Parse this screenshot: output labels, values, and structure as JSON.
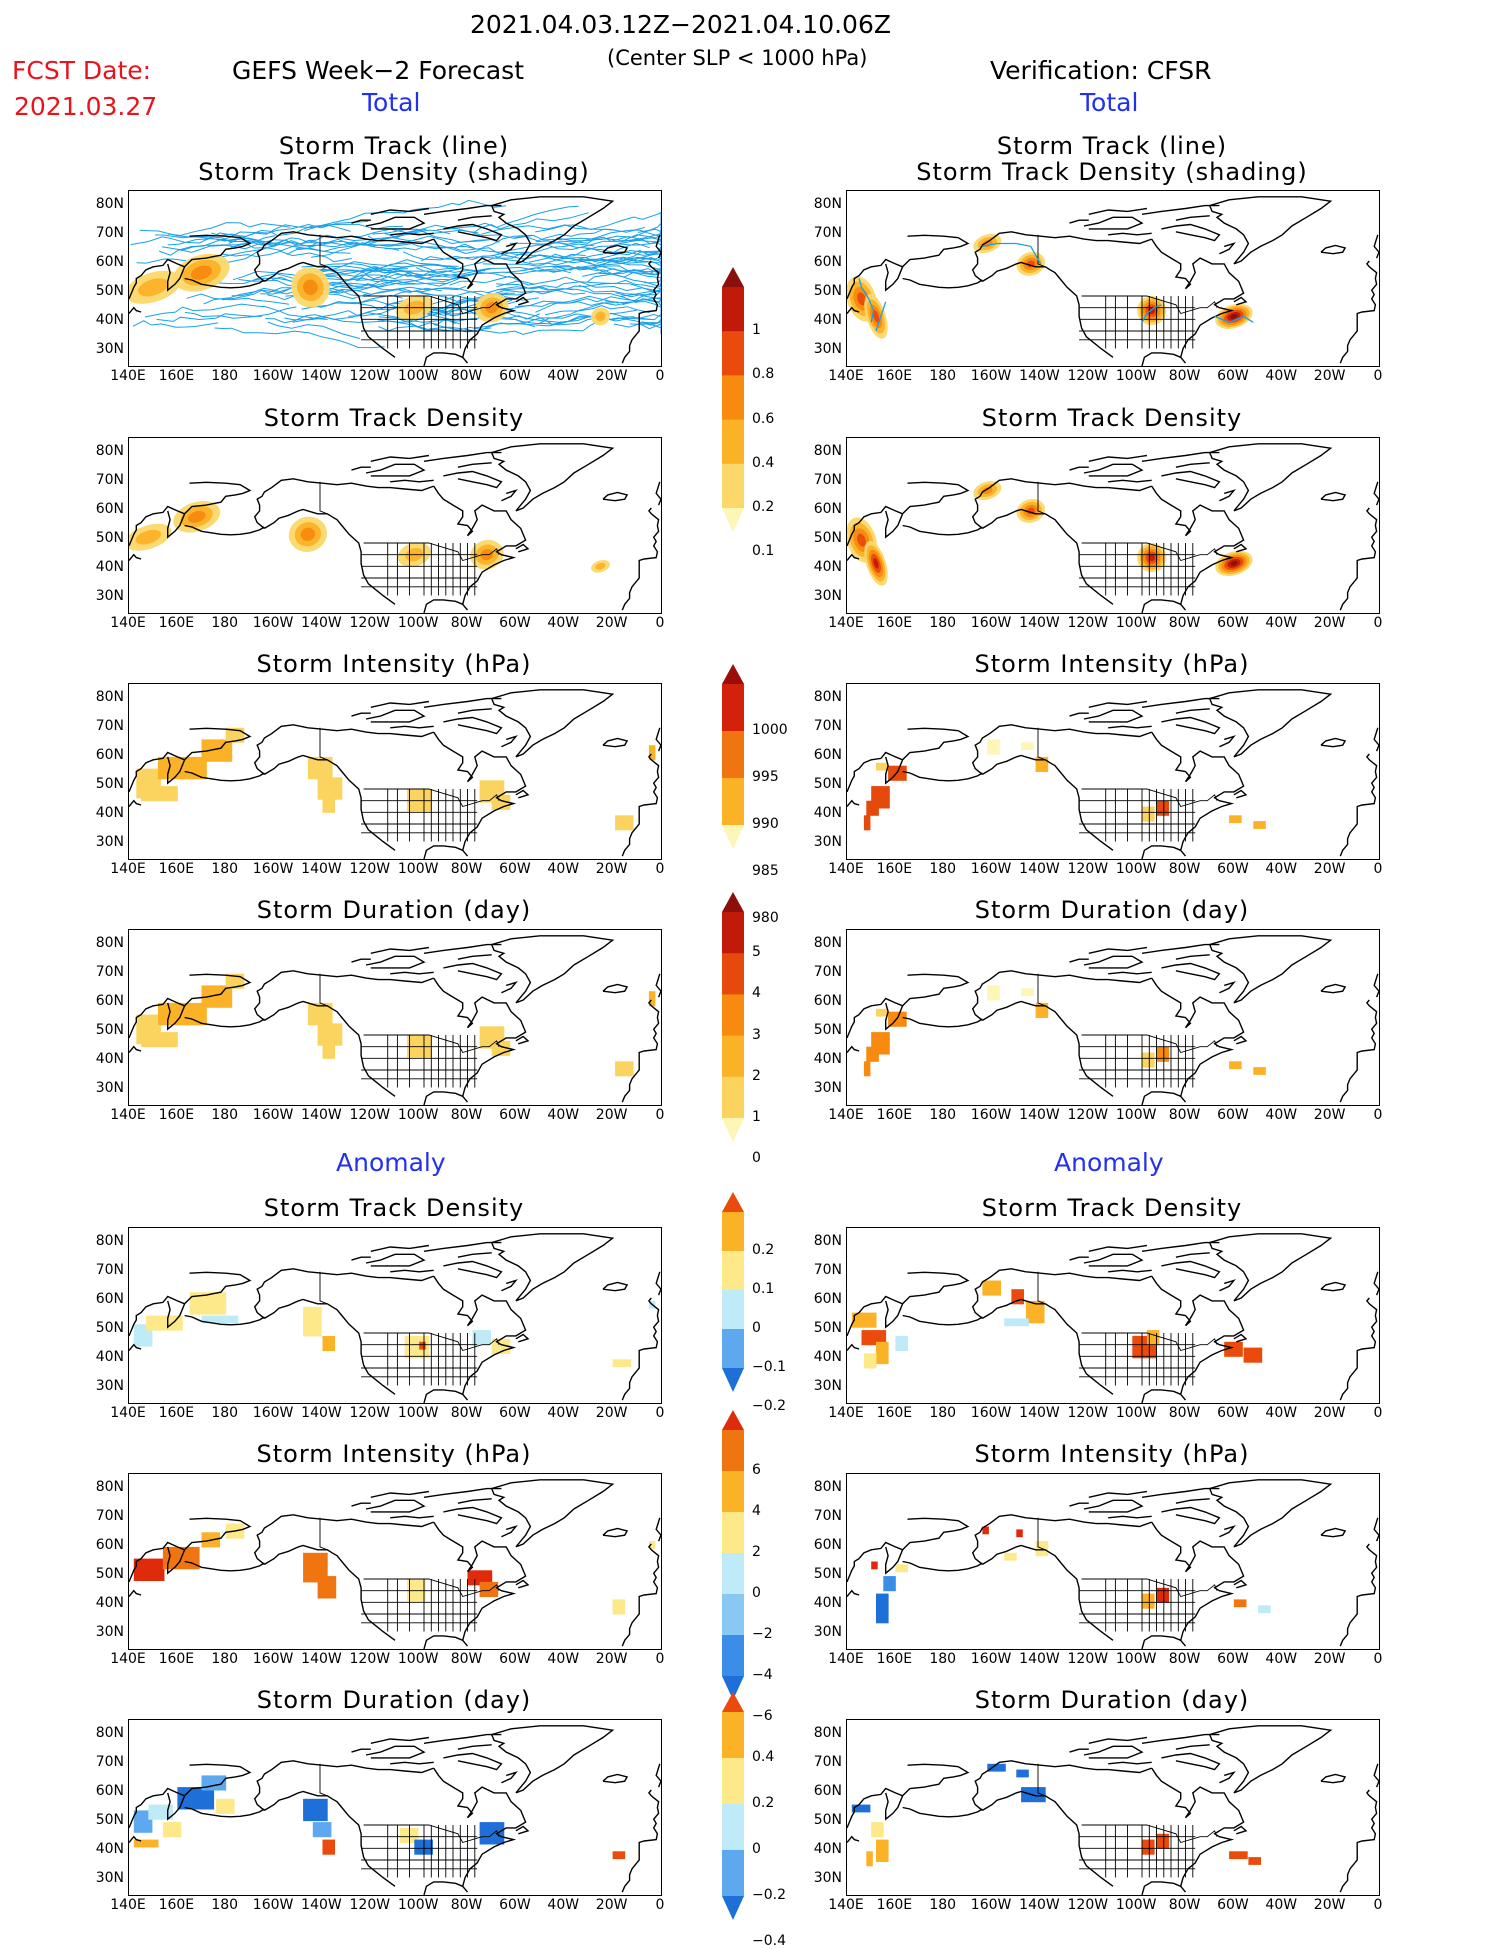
{
  "header": {
    "period": "2021.04.03.12Z−2021.04.10.06Z",
    "criterion": "(Center SLP < 1000 hPa)",
    "fcst_label": "FCST Date:",
    "fcst_date": "2021.03.27",
    "left_title": "GEFS Week−2 Forecast",
    "right_title": "Verification: CFSR",
    "total_label": "Total",
    "anomaly_label": "Anomaly"
  },
  "panel_titles": {
    "track_line": "Storm Track (line)",
    "track_shading": "Storm Track Density (shading)",
    "density": "Storm Track Density",
    "intensity": "Storm Intensity (hPa)",
    "duration": "Storm Duration (day)"
  },
  "axes": {
    "lat_ticks": [
      "80N",
      "70N",
      "60N",
      "50N",
      "40N",
      "30N"
    ],
    "lon_ticks": [
      "140E",
      "160E",
      "180",
      "160W",
      "140W",
      "120W",
      "100W",
      "80W",
      "60W",
      "40W",
      "20W",
      "0"
    ]
  },
  "colorbars": {
    "density_total": {
      "labels": [
        "1",
        "0.8",
        "0.6",
        "0.4",
        "0.2",
        "0.1"
      ],
      "colors": [
        "#fdf6b6",
        "#fcd86a",
        "#fbb227",
        "#f78a0f",
        "#ea4a0c",
        "#c11a0b",
        "#8b0f0d"
      ]
    },
    "intensity_total": {
      "labels": [
        "1000",
        "995",
        "990",
        "985",
        "980"
      ],
      "colors": [
        "#fdf6b6",
        "#fbb227",
        "#f07510",
        "#d3210c",
        "#9b0d0d"
      ]
    },
    "duration_total": {
      "labels": [
        "5",
        "4",
        "3",
        "2",
        "1",
        "0"
      ],
      "colors": [
        "#fdf6b6",
        "#fbd460",
        "#fbb227",
        "#f78a0f",
        "#e54a0c",
        "#c11a0b",
        "#8b0f0d"
      ]
    },
    "density_anom": {
      "labels": [
        "0.2",
        "0.1",
        "0",
        "−0.1",
        "−0.2"
      ],
      "colors": [
        "#1e6fd8",
        "#5ea8f0",
        "#bfeaf8",
        "#fde88a",
        "#fbb227",
        "#ea4a0c"
      ]
    },
    "intensity_anom": {
      "labels": [
        "6",
        "4",
        "2",
        "0",
        "−2",
        "−4",
        "−6"
      ],
      "colors": [
        "#1e6fd8",
        "#3a8ee8",
        "#8ac8f4",
        "#bfeaf8",
        "#fde88a",
        "#fbb227",
        "#f07510",
        "#e02a0c"
      ]
    },
    "duration_anom": {
      "labels": [
        "0.4",
        "0.2",
        "0",
        "−0.2",
        "−0.4"
      ],
      "colors": [
        "#1e6fd8",
        "#5ea8f0",
        "#bfeaf8",
        "#fde88a",
        "#fbb227",
        "#ea4a0c"
      ]
    }
  },
  "map_data": {
    "projection": "lat-lon, 140E–0, 25N–85N",
    "track_line_color": "#1aa0e8"
  }
}
